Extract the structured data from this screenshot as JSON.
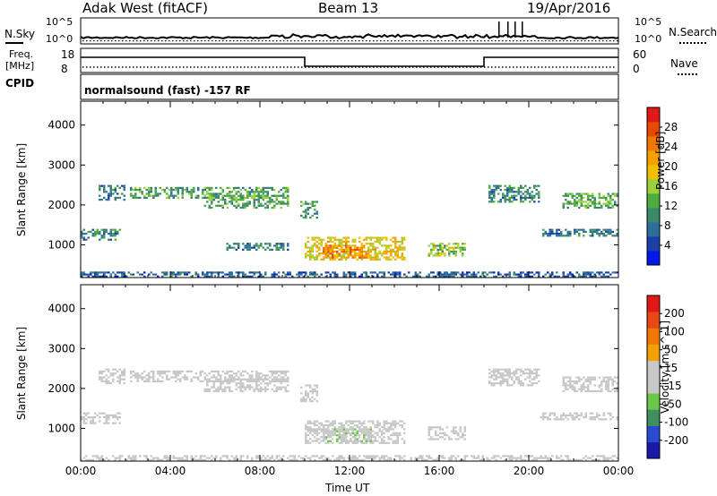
{
  "header": {
    "station": "Adak West (fitACF)",
    "beam": "Beam 13",
    "date": "19/Apr/2016"
  },
  "noise_panel": {
    "left_label": "N.Sky",
    "right_label": "N.Search",
    "left_ticks": [
      "10^5",
      "10^0"
    ],
    "right_ticks": [
      "10^5",
      "10^0"
    ]
  },
  "freq_panel": {
    "left_label_1": "Freq.",
    "left_label_2": "[MHz]",
    "right_label": "Nave",
    "left_ticks": [
      "18",
      "8"
    ],
    "right_ticks": [
      "60",
      "0"
    ],
    "cpid_label": "CPID",
    "cpid_text": "normalsound (fast) -157 RF"
  },
  "colors": {
    "power": [
      "#0018e8",
      "#1e3fa8",
      "#2c6f9a",
      "#3a8a6a",
      "#4cad3c",
      "#9bd13a",
      "#f0c000",
      "#f7a000",
      "#f07800",
      "#e84800",
      "#e01818"
    ],
    "velocity": [
      "#1a1aa8",
      "#2a4ad0",
      "#3f8f5f",
      "#6cc64a",
      "#c8c8c8",
      "#c8c8c8",
      "#f0a000",
      "#f07800",
      "#e84818",
      "#e01818"
    ]
  },
  "chart_data": [
    {
      "type": "heatmap",
      "name": "power",
      "xlabel": "",
      "ylabel": "Slant Range [km]",
      "x_unit": "hours UT",
      "xlim": [
        0,
        24
      ],
      "ylim": [
        180,
        4600
      ],
      "y_ticks": [
        "1000",
        "2000",
        "3000",
        "4000"
      ],
      "colorbar": {
        "label": "Power [dB]",
        "tick_labels": [
          "4",
          "8",
          "12",
          "16",
          "20",
          "24",
          "28"
        ],
        "range": [
          0,
          30
        ]
      },
      "regions": [
        {
          "t0": 0.0,
          "t1": 1.8,
          "r0": 1150,
          "r1": 1400,
          "value": 9
        },
        {
          "t0": 0.8,
          "t1": 2.0,
          "r0": 2150,
          "r1": 2500,
          "value": 8
        },
        {
          "t0": 2.2,
          "t1": 9.3,
          "r0": 2200,
          "r1": 2450,
          "value": 11
        },
        {
          "t0": 5.5,
          "t1": 9.3,
          "r0": 1950,
          "r1": 2250,
          "value": 12
        },
        {
          "t0": 9.8,
          "t1": 10.6,
          "r0": 1700,
          "r1": 2100,
          "value": 10
        },
        {
          "t0": 6.5,
          "t1": 9.3,
          "r0": 900,
          "r1": 1050,
          "value": 8
        },
        {
          "t0": 10.0,
          "t1": 14.5,
          "r0": 650,
          "r1": 1200,
          "value": 18
        },
        {
          "t0": 10.8,
          "t1": 13.0,
          "r0": 700,
          "r1": 1000,
          "value": 22
        },
        {
          "t0": 15.5,
          "t1": 17.2,
          "r0": 750,
          "r1": 1050,
          "value": 14
        },
        {
          "t0": 18.2,
          "t1": 20.5,
          "r0": 2100,
          "r1": 2500,
          "value": 9
        },
        {
          "t0": 21.5,
          "t1": 24.0,
          "r0": 1950,
          "r1": 2300,
          "value": 12
        },
        {
          "t0": 20.5,
          "t1": 24.0,
          "r0": 1250,
          "r1": 1400,
          "value": 7
        },
        {
          "t0": 0.0,
          "t1": 24.0,
          "r0": 200,
          "r1": 330,
          "value": 6
        }
      ]
    },
    {
      "type": "heatmap",
      "name": "velocity",
      "xlabel": "Time UT",
      "ylabel": "Slant Range [km]",
      "x_unit": "hours UT",
      "xlim": [
        0,
        24
      ],
      "ylim": [
        180,
        4600
      ],
      "x_ticks": [
        "00:00",
        "04:00",
        "08:00",
        "12:00",
        "16:00",
        "20:00",
        "00:00"
      ],
      "y_ticks": [
        "1000",
        "2000",
        "3000",
        "4000"
      ],
      "colorbar": {
        "label": "Velocity [m s^-1]",
        "tick_labels": [
          "200",
          "100",
          "50",
          "15",
          "-15",
          "-50",
          "-100",
          "-200"
        ],
        "range": [
          -250,
          250
        ]
      },
      "regions": [
        {
          "t0": 0.0,
          "t1": 1.8,
          "r0": 1150,
          "r1": 1400,
          "value": 0
        },
        {
          "t0": 0.8,
          "t1": 2.0,
          "r0": 2150,
          "r1": 2500,
          "value": 0
        },
        {
          "t0": 2.2,
          "t1": 9.3,
          "r0": 2200,
          "r1": 2450,
          "value": 0
        },
        {
          "t0": 5.5,
          "t1": 9.3,
          "r0": 1950,
          "r1": 2250,
          "value": 0
        },
        {
          "t0": 9.8,
          "t1": 10.6,
          "r0": 1700,
          "r1": 2100,
          "value": 0
        },
        {
          "t0": 10.0,
          "t1": 14.5,
          "r0": 650,
          "r1": 1200,
          "value": -30
        },
        {
          "t0": 10.8,
          "t1": 13.0,
          "r0": 700,
          "r1": 1000,
          "value": -45
        },
        {
          "t0": 15.5,
          "t1": 17.2,
          "r0": 750,
          "r1": 1050,
          "value": 0
        },
        {
          "t0": 18.2,
          "t1": 20.5,
          "r0": 2100,
          "r1": 2500,
          "value": 0
        },
        {
          "t0": 21.5,
          "t1": 24.0,
          "r0": 1950,
          "r1": 2300,
          "value": 0
        },
        {
          "t0": 20.5,
          "t1": 24.0,
          "r0": 1250,
          "r1": 1400,
          "value": 0
        },
        {
          "t0": 0.0,
          "t1": 24.0,
          "r0": 200,
          "r1": 330,
          "value": -30
        }
      ]
    }
  ]
}
